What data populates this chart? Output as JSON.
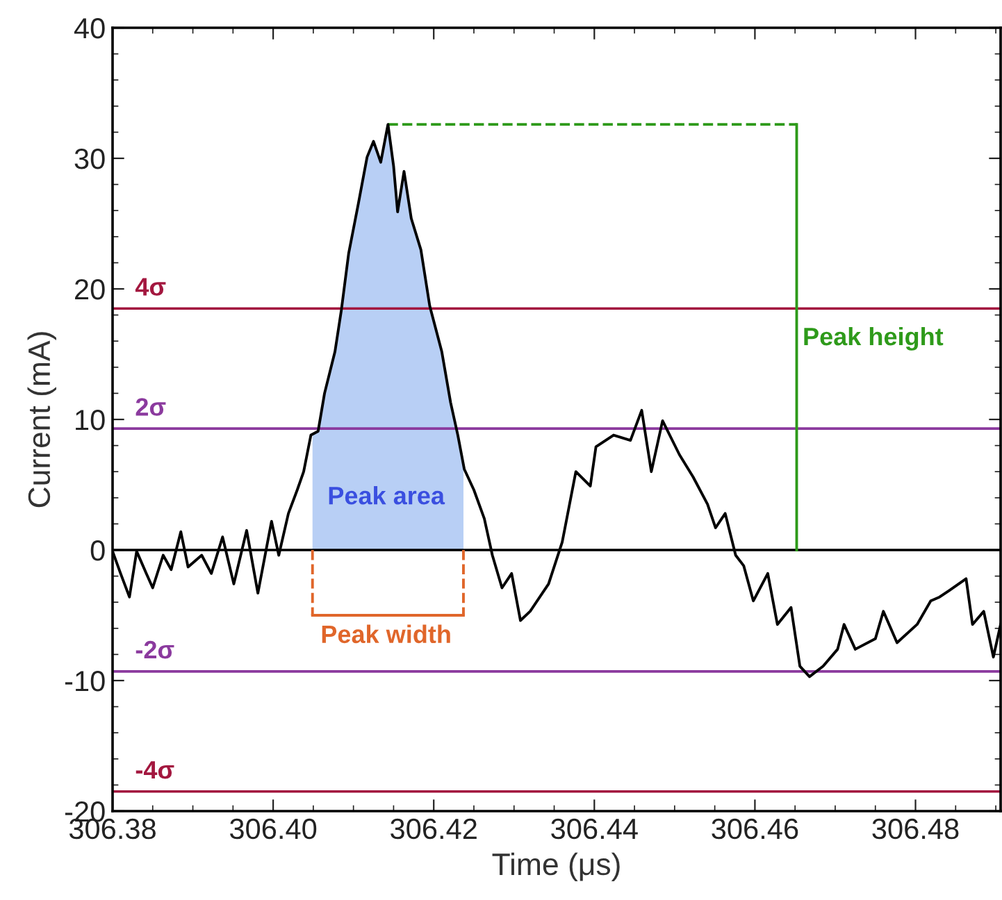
{
  "chart_data": {
    "type": "line",
    "xlabel": "Time (μs)",
    "ylabel": "Current (mA)",
    "x": [
      306.38,
      306.381,
      306.3821,
      306.383,
      306.3842,
      306.385,
      306.3863,
      306.3873,
      306.3885,
      306.3894,
      306.3911,
      306.3923,
      306.3937,
      306.3951,
      306.3967,
      306.3981,
      306.3998,
      306.4007,
      306.4019,
      306.403,
      306.4038,
      306.4047,
      306.4056,
      306.4064,
      306.4077,
      306.4085,
      306.4094,
      306.4106,
      306.4117,
      306.4125,
      306.4134,
      306.4143,
      306.415,
      306.4155,
      306.4163,
      306.4172,
      306.4184,
      306.4195,
      306.421,
      306.4221,
      306.423,
      306.4238,
      306.425,
      306.4263,
      306.4273,
      306.4285,
      306.4297,
      306.4308,
      306.432,
      306.4343,
      306.436,
      306.4377,
      306.4395,
      306.4402,
      306.4424,
      306.4445,
      306.4459,
      306.4471,
      306.4485,
      306.4506,
      306.4523,
      306.4541,
      306.4551,
      306.4563,
      306.4576,
      306.4586,
      306.4598,
      306.4616,
      306.4628,
      306.4645,
      306.4656,
      306.4668,
      306.4685,
      306.4703,
      306.4711,
      306.4725,
      306.475,
      306.476,
      306.4777,
      306.4802,
      306.4819,
      306.483,
      306.4842,
      306.4863,
      306.4871,
      306.4885,
      306.4897,
      306.4906
    ],
    "series": [
      {
        "type": "area",
        "color": "#b8cff5",
        "x": [
          306.4049,
          306.4056,
          306.4064,
          306.4077,
          306.4085,
          306.4094,
          306.4106,
          306.4117,
          306.4125,
          306.4134,
          306.4143,
          306.415,
          306.4155,
          306.4163,
          306.4172,
          306.4184,
          306.4195,
          306.421,
          306.4221,
          306.423,
          306.4237
        ],
        "values": [
          8.9,
          9.1,
          12.0,
          15.2,
          18.4,
          22.7,
          26.5,
          30.1,
          31.3,
          29.7,
          32.6,
          29.4,
          25.9,
          29.0,
          25.4,
          23.0,
          18.7,
          15.2,
          11.3,
          8.8,
          6.5
        ]
      },
      {
        "color": "#2e9a1a",
        "line_style": "dashed",
        "x": [
          306.4143,
          306.4652
        ],
        "values": [
          32.6,
          32.6
        ]
      },
      {
        "color": "#2e9a1a",
        "x": [
          306.4652,
          306.4652
        ],
        "values": [
          0,
          32.6
        ]
      },
      {
        "color": "#e0662a",
        "line_style": "dashed",
        "x": [
          306.4049,
          306.4049
        ],
        "values": [
          0,
          -5.0
        ]
      },
      {
        "color": "#e0662a",
        "line_style": "dashed",
        "x": [
          306.4237,
          306.4237
        ],
        "values": [
          0,
          -5.0
        ]
      },
      {
        "color": "#e0662a",
        "x": [
          306.4049,
          306.4237
        ],
        "values": [
          -5.0,
          -5.0
        ]
      },
      {
        "color": "#000000",
        "values": [
          -0.1,
          -1.8,
          -3.6,
          -0.1,
          -1.8,
          -2.9,
          -0.4,
          -1.5,
          1.4,
          -1.3,
          -0.4,
          -1.8,
          1.0,
          -2.6,
          1.5,
          -3.3,
          2.2,
          -0.4,
          2.8,
          4.6,
          6.0,
          8.8,
          9.1,
          12.0,
          15.2,
          18.4,
          22.7,
          26.5,
          30.1,
          31.3,
          29.7,
          32.6,
          29.4,
          25.9,
          29.0,
          25.4,
          23.0,
          18.7,
          15.2,
          11.3,
          8.8,
          6.2,
          4.6,
          2.4,
          -0.4,
          -2.9,
          -1.8,
          -5.4,
          -4.7,
          -2.6,
          0.6,
          6.0,
          4.9,
          7.9,
          8.8,
          8.4,
          10.7,
          6.0,
          9.9,
          7.3,
          5.6,
          3.5,
          1.7,
          2.8,
          -0.4,
          -1.2,
          -3.9,
          -1.8,
          -5.7,
          -4.4,
          -8.9,
          -9.7,
          -8.9,
          -7.6,
          -5.7,
          -7.6,
          -6.8,
          -4.7,
          -7.1,
          -5.7,
          -3.9,
          -3.6,
          -3.1,
          -2.2,
          -5.7,
          -4.7,
          -8.2,
          -5.7
        ]
      }
    ],
    "xlim": [
      306.38,
      306.4906
    ],
    "ylim": [
      -20,
      40
    ],
    "xticks": [
      {
        "value": 306.38,
        "label": "306.38"
      },
      {
        "value": 306.4,
        "label": "306.40"
      },
      {
        "value": 306.42,
        "label": "306.42"
      },
      {
        "value": 306.44,
        "label": "306.44"
      },
      {
        "value": 306.46,
        "label": "306.46"
      },
      {
        "value": 306.48,
        "label": "306.48"
      }
    ],
    "yticks": [
      -20,
      -10,
      0,
      10,
      20,
      30,
      40
    ],
    "ref_lines": [
      {
        "axis": "y",
        "value": 0,
        "color": "#000000"
      },
      {
        "axis": "y",
        "value": 18.5,
        "label": "4σ",
        "color": "#a3173f"
      },
      {
        "axis": "y",
        "value": 9.3,
        "label": "2σ",
        "color": "#8b3a9e"
      },
      {
        "axis": "y",
        "value": -9.3,
        "label": "-2σ",
        "color": "#8b3a9e"
      },
      {
        "axis": "y",
        "value": -18.5,
        "label": "-4σ",
        "color": "#a3173f"
      }
    ],
    "annotations": [
      "Peak height",
      "Peak area",
      "Peak width"
    ],
    "grid": false,
    "legend": false,
    "marker": "none",
    "line_style": "solid"
  }
}
